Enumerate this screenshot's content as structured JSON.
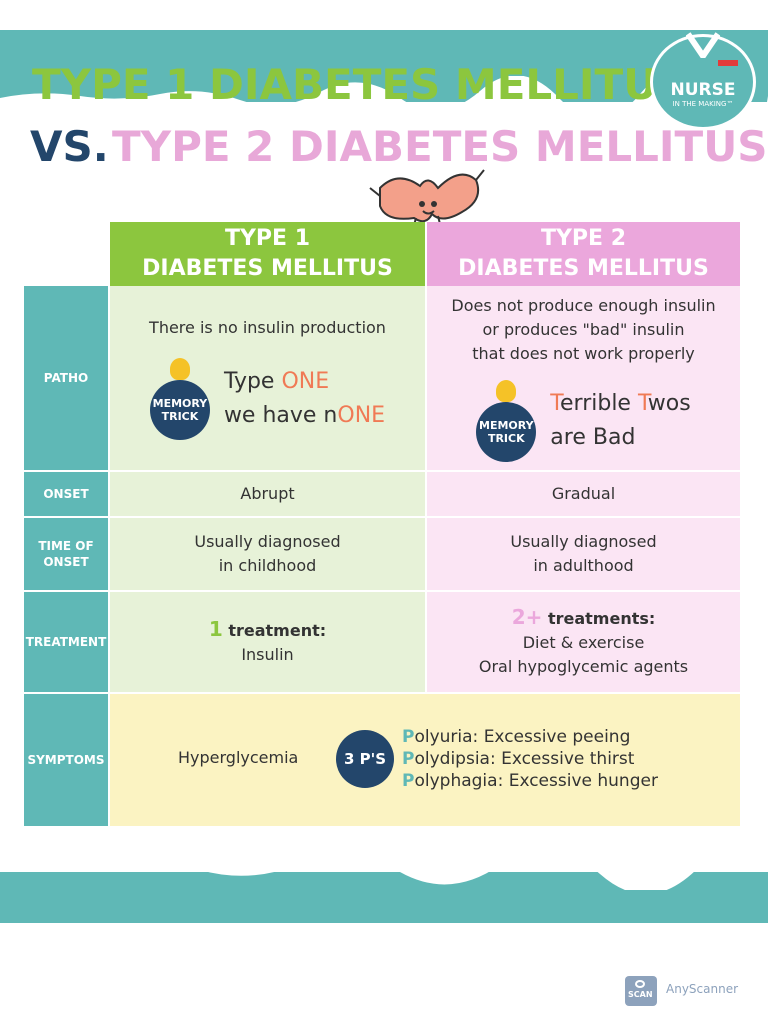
{
  "title": {
    "line1": "TYPE 1 DIABETES MELLITUS",
    "vs": "VS.",
    "line2": "TYPE 2 DIABETES MELLITUS"
  },
  "logo": {
    "name": "NURSE",
    "tagline": "IN THE MAKING™"
  },
  "columns": {
    "type1": [
      "TYPE 1",
      "DIABETES MELLITUS"
    ],
    "type2": [
      "TYPE 2",
      "DIABETES MELLITUS"
    ]
  },
  "memory_badge": [
    "MEMORY",
    "TRICK"
  ],
  "rows": {
    "patho": {
      "label": "PATHO",
      "type1": "There is no insulin production",
      "type1_trick": {
        "l1_a": "Type ",
        "l1_b": "ONE",
        "l2_a": "we have n",
        "l2_b": "ONE"
      },
      "type2": [
        "Does not produce enough insulin",
        "or produces \"bad\" insulin",
        "that does not work properly"
      ],
      "type2_trick": {
        "a": "T",
        "b": "errible ",
        "c": "T",
        "d": "wos",
        "l2": "are Bad"
      }
    },
    "onset": {
      "label": "ONSET",
      "type1": "Abrupt",
      "type2": "Gradual"
    },
    "time_of_onset": {
      "label": [
        "TIME OF",
        "ONSET"
      ],
      "type1": [
        "Usually diagnosed",
        "in childhood"
      ],
      "type2": [
        "Usually diagnosed",
        "in adulthood"
      ]
    },
    "treatment": {
      "label": "TREATMENT",
      "type1": {
        "count": "1",
        "heading": " treatment:",
        "items": [
          "Insulin"
        ]
      },
      "type2": {
        "count": "2+",
        "heading": " treatments:",
        "items": [
          "Diet & exercise",
          "Oral hypoglycemic agents"
        ]
      }
    },
    "symptoms": {
      "label": "SYMPTOMS",
      "general": "Hyperglycemia",
      "badge": "3 P'S",
      "items": [
        {
          "initial": "P",
          "rest": "olyuria: Excessive peeing"
        },
        {
          "initial": "P",
          "rest": "olydipsia: Excessive thirst"
        },
        {
          "initial": "P",
          "rest": "olyphagia: Excessive hunger"
        }
      ]
    }
  },
  "watermark": {
    "icon_label": "SCAN",
    "brand": "AnyScanner"
  },
  "colors": {
    "teal": "#5fb8b6",
    "green": "#8cc63e",
    "pink": "#eba7dc",
    "navy": "#23466b",
    "orange": "#f07a55"
  }
}
